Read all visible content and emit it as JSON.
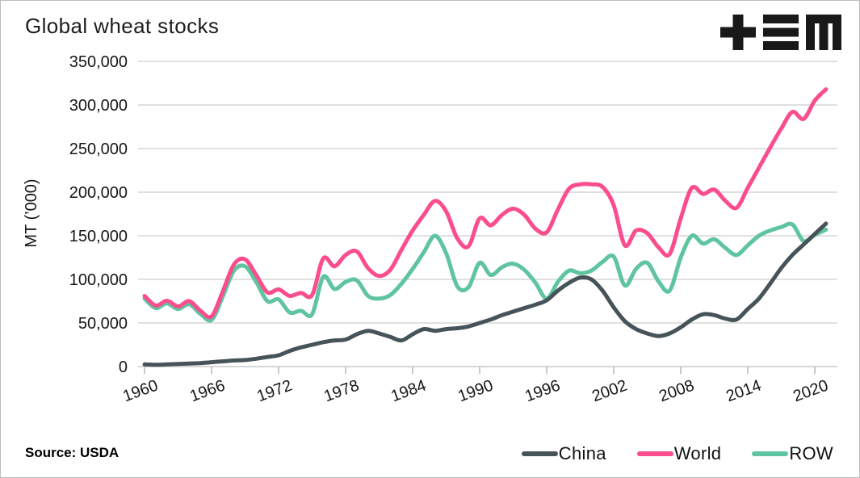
{
  "header": {
    "title": "Global wheat stocks"
  },
  "logo": {
    "label": "+≡M",
    "glyphs": [
      "plus",
      "triple-bar",
      "letter-m"
    ],
    "color": "#191919"
  },
  "source": {
    "text": "Source: USDA"
  },
  "legend": {
    "items": [
      {
        "label": "China",
        "color": "#46545A"
      },
      {
        "label": "World",
        "color": "#FA4D8E"
      },
      {
        "label": "ROW",
        "color": "#5FC4A0"
      }
    ]
  },
  "chart_data": {
    "type": "line",
    "title": "Global wheat stocks",
    "xlabel": "",
    "ylabel": "MT (’000)",
    "ylim": [
      0,
      350000
    ],
    "yticks": [
      0,
      50000,
      100000,
      150000,
      200000,
      250000,
      300000,
      350000
    ],
    "ytick_labels": [
      "0",
      "50,000",
      "100,000",
      "150,000",
      "200,000",
      "250,000",
      "300,000",
      "350,000"
    ],
    "xticks": [
      1960,
      1966,
      1972,
      1978,
      1984,
      1990,
      1996,
      2002,
      2008,
      2014,
      2020
    ],
    "grid": "horizontal-only",
    "legend_position": "bottom-right",
    "grid_color": "#d6d6d6",
    "axis_color": "#c9c9c9",
    "label_color": "#161616",
    "x": [
      1960,
      1961,
      1962,
      1963,
      1964,
      1965,
      1966,
      1967,
      1968,
      1969,
      1970,
      1971,
      1972,
      1973,
      1974,
      1975,
      1976,
      1977,
      1978,
      1979,
      1980,
      1981,
      1982,
      1983,
      1984,
      1985,
      1986,
      1987,
      1988,
      1989,
      1990,
      1991,
      1992,
      1993,
      1994,
      1995,
      1996,
      1997,
      1998,
      1999,
      2000,
      2001,
      2002,
      2003,
      2004,
      2005,
      2006,
      2007,
      2008,
      2009,
      2010,
      2011,
      2012,
      2013,
      2014,
      2015,
      2016,
      2017,
      2018,
      2019,
      2020,
      2021
    ],
    "series": [
      {
        "name": "China",
        "color": "#46545A",
        "values": [
          2500,
          2000,
          2500,
          3000,
          3500,
          4000,
          5000,
          6000,
          7000,
          7500,
          9000,
          11000,
          13000,
          18000,
          22000,
          25000,
          28000,
          30000,
          31000,
          37000,
          41000,
          38000,
          34000,
          30000,
          37000,
          43000,
          41000,
          43000,
          44000,
          46000,
          50000,
          54000,
          59000,
          63000,
          67000,
          71000,
          76000,
          87000,
          96000,
          102000,
          100000,
          87000,
          68000,
          52000,
          43000,
          38000,
          35000,
          38000,
          45000,
          54000,
          60000,
          59000,
          55000,
          54000,
          66000,
          78000,
          95000,
          113000,
          128000,
          140000,
          152000,
          164000
        ]
      },
      {
        "name": "World",
        "color": "#FA4D8E",
        "values": [
          81000,
          70000,
          75500,
          69000,
          75000,
          64000,
          57500,
          86000,
          117000,
          123000,
          105000,
          85000,
          88500,
          81000,
          84500,
          82000,
          124000,
          115000,
          128000,
          132000,
          113000,
          104000,
          111000,
          134000,
          156000,
          174000,
          190000,
          178000,
          147000,
          138000,
          170000,
          162000,
          174000,
          181000,
          174000,
          158000,
          154000,
          180000,
          204000,
          209000,
          209000,
          206000,
          185000,
          139000,
          156000,
          153000,
          137000,
          129000,
          170000,
          205000,
          198000,
          203000,
          190000,
          182000,
          205000,
          228000,
          251000,
          273000,
          292000,
          284000,
          305000,
          318000
        ]
      },
      {
        "name": "ROW",
        "color": "#5FC4A0",
        "values": [
          78000,
          67000,
          72500,
          66000,
          71500,
          60500,
          53500,
          80000,
          110000,
          115000,
          97000,
          75000,
          77000,
          62000,
          64000,
          60000,
          103000,
          89000,
          97000,
          99000,
          81000,
          78000,
          82000,
          95000,
          112000,
          131000,
          150000,
          130000,
          92000,
          91000,
          119000,
          105000,
          114000,
          118000,
          111000,
          96000,
          78000,
          97000,
          110000,
          107000,
          110000,
          120000,
          126000,
          93000,
          112000,
          119000,
          98000,
          87000,
          125000,
          150000,
          141000,
          146000,
          136000,
          128000,
          139000,
          150000,
          156000,
          160000,
          163000,
          144000,
          151000,
          157000
        ]
      }
    ]
  }
}
